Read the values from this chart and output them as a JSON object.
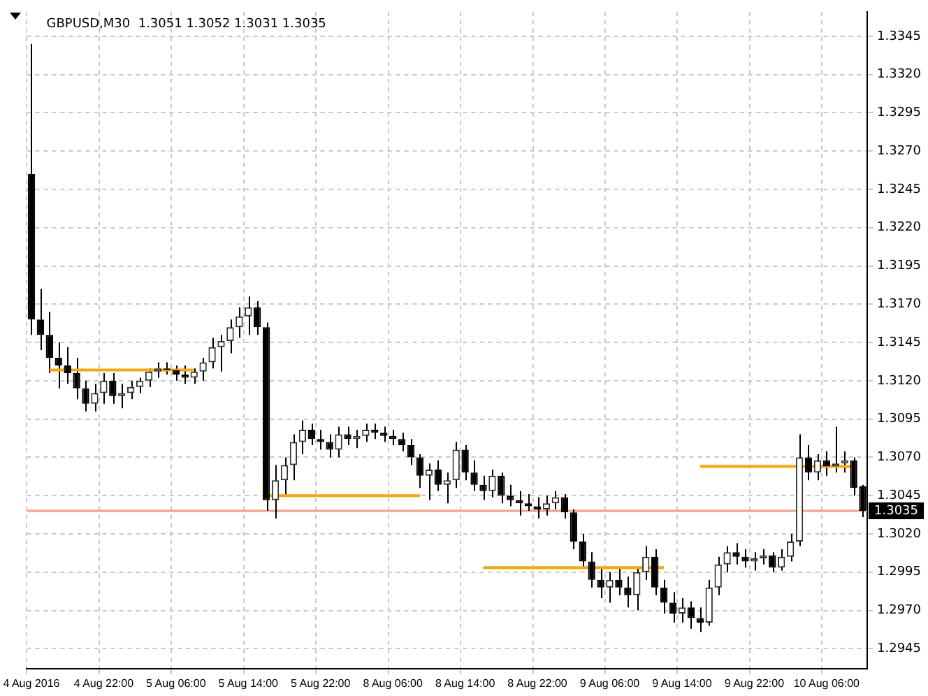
{
  "chart_data": {
    "type": "candlestick",
    "title": "GBPUSD,M30  1.3051 1.3052 1.3031 1.3035",
    "categories": [
      "4 Aug 2016",
      null,
      null,
      null,
      null,
      null,
      null,
      null,
      "4 Aug 22:00",
      null,
      null,
      null,
      null,
      null,
      null,
      null,
      "5 Aug 06:00",
      null,
      null,
      null,
      null,
      null,
      null,
      null,
      "5 Aug 14:00",
      null,
      null,
      null,
      null,
      null,
      null,
      null,
      "5 Aug 22:00",
      null,
      null,
      null,
      null,
      null,
      null,
      null,
      "8 Aug 06:00",
      null,
      null,
      null,
      null,
      null,
      null,
      null,
      "8 Aug 14:00",
      null,
      null,
      null,
      null,
      null,
      null,
      null,
      "8 Aug 22:00",
      null,
      null,
      null,
      null,
      null,
      null,
      null,
      "9 Aug 06:00",
      null,
      null,
      null,
      null,
      null,
      null,
      null,
      "9 Aug 14:00",
      null,
      null,
      null,
      null,
      null,
      null,
      null,
      "9 Aug 22:00",
      null,
      null,
      null,
      null,
      null,
      null,
      null,
      "10 Aug 06:00",
      null,
      null,
      null,
      null
    ],
    "ohlc": [
      [
        1.3255,
        1.334,
        1.315,
        1.316
      ],
      [
        1.316,
        1.318,
        1.314,
        1.315
      ],
      [
        1.315,
        1.3165,
        1.3125,
        1.3135
      ],
      [
        1.3135,
        1.3145,
        1.3115,
        1.313
      ],
      [
        1.313,
        1.3142,
        1.3118,
        1.3125
      ],
      [
        1.3125,
        1.3135,
        1.3108,
        1.3115
      ],
      [
        1.3115,
        1.312,
        1.31,
        1.3105
      ],
      [
        1.3105,
        1.3118,
        1.31,
        1.3112
      ],
      [
        1.3112,
        1.3125,
        1.3105,
        1.312
      ],
      [
        1.312,
        1.3125,
        1.3105,
        1.311
      ],
      [
        1.311,
        1.3118,
        1.3102,
        1.3112
      ],
      [
        1.3112,
        1.312,
        1.3108,
        1.3116
      ],
      [
        1.3116,
        1.3122,
        1.3112,
        1.312
      ],
      [
        1.312,
        1.3128,
        1.3116,
        1.3126
      ],
      [
        1.3126,
        1.3132,
        1.3122,
        1.3128
      ],
      [
        1.3128,
        1.3132,
        1.3124,
        1.3127
      ],
      [
        1.3127,
        1.313,
        1.312,
        1.3124
      ],
      [
        1.3124,
        1.313,
        1.3118,
        1.3122
      ],
      [
        1.3122,
        1.3128,
        1.3118,
        1.3126
      ],
      [
        1.3126,
        1.3135,
        1.312,
        1.3132
      ],
      [
        1.3132,
        1.3148,
        1.3128,
        1.3142
      ],
      [
        1.3142,
        1.315,
        1.3126,
        1.3146
      ],
      [
        1.3146,
        1.316,
        1.3138,
        1.3155
      ],
      [
        1.3155,
        1.3168,
        1.3148,
        1.3162
      ],
      [
        1.3162,
        1.3175,
        1.315,
        1.3168
      ],
      [
        1.3168,
        1.3172,
        1.315,
        1.3155
      ],
      [
        1.3155,
        1.3158,
        1.3035,
        1.3042
      ],
      [
        1.3042,
        1.3065,
        1.303,
        1.3055
      ],
      [
        1.3055,
        1.307,
        1.3045,
        1.3065
      ],
      [
        1.3065,
        1.3085,
        1.3055,
        1.308
      ],
      [
        1.308,
        1.3094,
        1.3072,
        1.3088
      ],
      [
        1.3088,
        1.3092,
        1.3078,
        1.3082
      ],
      [
        1.3082,
        1.3088,
        1.3075,
        1.308
      ],
      [
        1.308,
        1.3085,
        1.307,
        1.3075
      ],
      [
        1.3075,
        1.309,
        1.307,
        1.3085
      ],
      [
        1.3085,
        1.309,
        1.3078,
        1.3082
      ],
      [
        1.3082,
        1.3088,
        1.3076,
        1.3084
      ],
      [
        1.3084,
        1.3092,
        1.308,
        1.3088
      ],
      [
        1.3088,
        1.3092,
        1.3082,
        1.3086
      ],
      [
        1.3086,
        1.309,
        1.308,
        1.3084
      ],
      [
        1.3084,
        1.3088,
        1.3078,
        1.3082
      ],
      [
        1.3082,
        1.3086,
        1.3074,
        1.3078
      ],
      [
        1.3078,
        1.3082,
        1.3065,
        1.307
      ],
      [
        1.307,
        1.3072,
        1.305,
        1.3058
      ],
      [
        1.3058,
        1.3066,
        1.3042,
        1.3062
      ],
      [
        1.3062,
        1.3068,
        1.3048,
        1.3052
      ],
      [
        1.3052,
        1.306,
        1.304,
        1.3055
      ],
      [
        1.3055,
        1.308,
        1.305,
        1.3075
      ],
      [
        1.3075,
        1.3078,
        1.3055,
        1.306
      ],
      [
        1.306,
        1.3068,
        1.3048,
        1.3052
      ],
      [
        1.3052,
        1.3058,
        1.3042,
        1.3048
      ],
      [
        1.3048,
        1.3062,
        1.3044,
        1.3058
      ],
      [
        1.3058,
        1.306,
        1.304,
        1.3045
      ],
      [
        1.3045,
        1.3052,
        1.3038,
        1.3042
      ],
      [
        1.3042,
        1.3048,
        1.3032,
        1.304
      ],
      [
        1.304,
        1.3046,
        1.3035,
        1.3038
      ],
      [
        1.3038,
        1.3044,
        1.303,
        1.3036
      ],
      [
        1.3036,
        1.3045,
        1.3032,
        1.304
      ],
      [
        1.304,
        1.3048,
        1.3036,
        1.3044
      ],
      [
        1.3044,
        1.3046,
        1.303,
        1.3034
      ],
      [
        1.3034,
        1.3036,
        1.301,
        1.3015
      ],
      [
        1.3015,
        1.302,
        1.2998,
        1.3002
      ],
      [
        1.3002,
        1.3008,
        1.2985,
        1.299
      ],
      [
        1.299,
        1.2998,
        1.2978,
        1.2985
      ],
      [
        1.2985,
        1.2995,
        1.2975,
        1.299
      ],
      [
        1.299,
        1.2998,
        1.298,
        1.2985
      ],
      [
        1.2985,
        1.2992,
        1.2972,
        1.298
      ],
      [
        1.298,
        1.2998,
        1.297,
        1.2995
      ],
      [
        1.2995,
        1.3012,
        1.299,
        1.3005
      ],
      [
        1.3005,
        1.301,
        1.298,
        1.2985
      ],
      [
        1.2985,
        1.299,
        1.2968,
        1.2975
      ],
      [
        1.2975,
        1.2982,
        1.2962,
        1.2968
      ],
      [
        1.2968,
        1.2978,
        1.2962,
        1.2972
      ],
      [
        1.2972,
        1.2976,
        1.2958,
        1.2965
      ],
      [
        1.2965,
        1.2972,
        1.2956,
        1.2962
      ],
      [
        1.2962,
        1.299,
        1.296,
        1.2985
      ],
      [
        1.2985,
        1.3005,
        1.298,
        1.3
      ],
      [
        1.3,
        1.3012,
        1.2995,
        1.3008
      ],
      [
        1.3008,
        1.3014,
        1.3,
        1.3005
      ],
      [
        1.3005,
        1.301,
        1.2998,
        1.3002
      ],
      [
        1.3002,
        1.3008,
        1.2996,
        1.3004
      ],
      [
        1.3004,
        1.301,
        1.3,
        1.3006
      ],
      [
        1.3006,
        1.3008,
        1.2995,
        1.2998
      ],
      [
        1.2998,
        1.301,
        1.2996,
        1.3005
      ],
      [
        1.3005,
        1.302,
        1.3002,
        1.3015
      ],
      [
        1.3015,
        1.3085,
        1.3012,
        1.307
      ],
      [
        1.307,
        1.3078,
        1.3055,
        1.306
      ],
      [
        1.306,
        1.3072,
        1.3055,
        1.3068
      ],
      [
        1.3068,
        1.3074,
        1.3058,
        1.3064
      ],
      [
        1.3064,
        1.309,
        1.306,
        1.3066
      ],
      [
        1.3066,
        1.3074,
        1.306,
        1.3068
      ],
      [
        1.3068,
        1.307,
        1.3045,
        1.305
      ],
      [
        1.3051,
        1.3052,
        1.3031,
        1.3035
      ]
    ],
    "series": [
      {
        "type": "line",
        "color": "#ffa500",
        "values": [
          null,
          null,
          1.3127,
          1.3127,
          1.3127,
          1.3127,
          1.3127,
          1.3127,
          1.3127,
          1.3127,
          1.3127,
          1.3127,
          1.3127,
          1.3127,
          1.3127,
          1.3127,
          1.3127,
          1.3127,
          1.3127,
          null,
          null,
          null,
          null,
          null,
          null,
          null,
          null,
          null,
          null,
          null,
          null,
          null,
          null,
          null,
          null,
          null,
          null,
          null,
          null,
          null,
          null,
          null,
          null,
          null,
          null,
          null,
          null,
          null,
          null,
          null,
          null,
          null,
          null,
          null,
          null,
          null,
          null,
          null,
          null,
          null,
          null,
          null,
          null,
          null,
          null,
          null,
          null,
          null,
          null,
          null,
          null,
          null,
          null,
          null,
          null,
          null,
          null,
          null,
          null,
          null,
          null,
          null,
          null,
          null,
          null,
          null,
          null,
          null,
          null,
          null,
          null,
          null,
          null
        ]
      },
      {
        "type": "line",
        "color": "#ffa500",
        "values": [
          null,
          null,
          null,
          null,
          null,
          null,
          null,
          null,
          null,
          null,
          null,
          null,
          null,
          null,
          null,
          null,
          null,
          null,
          null,
          null,
          null,
          null,
          null,
          null,
          null,
          null,
          1.3045,
          1.3045,
          1.3045,
          1.3045,
          1.3045,
          1.3045,
          1.3045,
          1.3045,
          1.3045,
          1.3045,
          1.3045,
          1.3045,
          1.3045,
          1.3045,
          1.3045,
          1.3045,
          1.3045,
          1.3045,
          null,
          null,
          null,
          null,
          null,
          null,
          null,
          null,
          null,
          null,
          null,
          null,
          null,
          null,
          null,
          null,
          null,
          null,
          null,
          null,
          null,
          null,
          null,
          null,
          null,
          null,
          null,
          null,
          null,
          null,
          null,
          null,
          null,
          null,
          null,
          null,
          null,
          null,
          null,
          null,
          null,
          null,
          null,
          null,
          null,
          null,
          null,
          null,
          null
        ]
      },
      {
        "type": "line",
        "color": "#ffa500",
        "values": [
          null,
          null,
          null,
          null,
          null,
          null,
          null,
          null,
          null,
          null,
          null,
          null,
          null,
          null,
          null,
          null,
          null,
          null,
          null,
          null,
          null,
          null,
          null,
          null,
          null,
          null,
          null,
          null,
          null,
          null,
          null,
          null,
          null,
          null,
          null,
          null,
          null,
          null,
          null,
          null,
          null,
          null,
          null,
          null,
          null,
          null,
          null,
          null,
          null,
          null,
          1.2998,
          1.2998,
          1.2998,
          1.2998,
          1.2998,
          1.2998,
          1.2998,
          1.2998,
          1.2998,
          1.2998,
          1.2998,
          1.2998,
          1.2998,
          1.2998,
          1.2998,
          1.2998,
          1.2998,
          1.2998,
          1.2998,
          1.2998,
          1.2998,
          null,
          null,
          null,
          null,
          null,
          null,
          null,
          null,
          null,
          null,
          null,
          null,
          null,
          null,
          null,
          null,
          null,
          null,
          null,
          null,
          null,
          null
        ]
      },
      {
        "type": "line",
        "color": "#ffa500",
        "values": [
          null,
          null,
          null,
          null,
          null,
          null,
          null,
          null,
          null,
          null,
          null,
          null,
          null,
          null,
          null,
          null,
          null,
          null,
          null,
          null,
          null,
          null,
          null,
          null,
          null,
          null,
          null,
          null,
          null,
          null,
          null,
          null,
          null,
          null,
          null,
          null,
          null,
          null,
          null,
          null,
          null,
          null,
          null,
          null,
          null,
          null,
          null,
          null,
          null,
          null,
          null,
          null,
          null,
          null,
          null,
          null,
          null,
          null,
          null,
          null,
          null,
          null,
          null,
          null,
          null,
          null,
          null,
          null,
          null,
          null,
          null,
          null,
          null,
          null,
          1.3064,
          1.3064,
          1.3064,
          1.3064,
          1.3064,
          1.3064,
          1.3064,
          1.3064,
          1.3064,
          1.3064,
          1.3064,
          1.3064,
          1.3064,
          1.3064,
          1.3064,
          1.3064,
          1.3064,
          1.3064,
          null
        ]
      }
    ],
    "ylim": [
      1.2932,
      1.3361
    ],
    "yticks": [
      1.2945,
      {
        "value": 1.297,
        "label": "1.2970"
      },
      1.2995,
      {
        "value": 1.302,
        "label": "1.3020"
      },
      1.3045,
      {
        "value": 1.307,
        "label": "1.3070"
      },
      1.3095,
      {
        "value": 1.312,
        "label": "1.3120"
      },
      1.3145,
      {
        "value": 1.317,
        "label": "1.3170"
      },
      1.3195,
      {
        "value": 1.322,
        "label": "1.3220"
      },
      1.3245,
      {
        "value": 1.327,
        "label": "1.3270"
      },
      1.3295,
      {
        "value": 1.332,
        "label": "1.3320"
      },
      1.3345
    ],
    "ref_lines": [
      {
        "axis": "y",
        "value": 1.3035,
        "label": "1.3035",
        "color": "#f4a080"
      }
    ],
    "grid": true,
    "marker": "none"
  }
}
